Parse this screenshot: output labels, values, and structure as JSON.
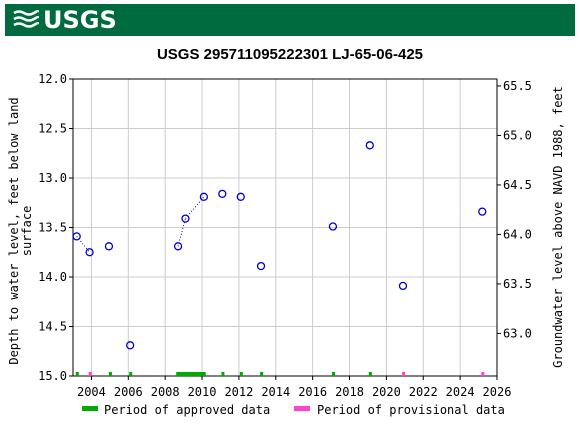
{
  "header": {
    "logo_text": "USGS",
    "banner_color": "#006b3f"
  },
  "chart_data": {
    "type": "scatter",
    "title": "USGS 295711095222301 LJ-65-06-425",
    "ylabel_left": "Depth to water level, feet below land surface",
    "ylabel_left_lines": [
      "Depth to water level, feet below land",
      "surface"
    ],
    "ylabel_right": "Groundwater level above NAVD 1988, feet",
    "xlim": [
      2003.0,
      2026.0
    ],
    "ylim_left": [
      12.0,
      15.0
    ],
    "ylim_right": [
      62.57,
      65.57
    ],
    "x_ticks": [
      "2004",
      "2006",
      "2008",
      "2010",
      "2012",
      "2014",
      "2016",
      "2018",
      "2020",
      "2022",
      "2024",
      "2026"
    ],
    "y_ticks_left": [
      "12.0",
      "12.5",
      "13.0",
      "13.5",
      "14.0",
      "14.5",
      "15.0"
    ],
    "y_ticks_right": [
      "65.5",
      "65.0",
      "64.5",
      "64.0",
      "63.5",
      "63.0"
    ],
    "series": [
      {
        "marker": "open-circle",
        "color": "#0000cc",
        "x": [
          2003.2,
          2003.9,
          2004.95,
          2006.1,
          2008.7,
          2009.1,
          2010.1,
          2011.1,
          2012.1,
          2013.2,
          2017.1,
          2019.1,
          2020.9,
          2025.2
        ],
        "y": [
          13.59,
          13.75,
          13.69,
          14.69,
          13.69,
          13.41,
          13.19,
          13.16,
          13.19,
          13.89,
          13.49,
          12.67,
          14.09,
          13.34
        ],
        "dotted_connections": [
          [
            0,
            1
          ],
          [
            4,
            5
          ],
          [
            5,
            6
          ]
        ]
      }
    ],
    "approved_periods": [
      [
        2003.15,
        2003.3
      ],
      [
        2004.95,
        2005.1
      ],
      [
        2006.05,
        2006.2
      ],
      [
        2008.6,
        2010.2
      ],
      [
        2011.05,
        2011.2
      ],
      [
        2012.05,
        2012.2
      ],
      [
        2013.15,
        2013.3
      ],
      [
        2017.05,
        2017.2
      ],
      [
        2019.05,
        2019.2
      ]
    ],
    "provisional_periods": [
      [
        2003.85,
        2004.0
      ],
      [
        2020.85,
        2021.0
      ],
      [
        2025.15,
        2025.3
      ]
    ],
    "approved_color": "#00aa00",
    "provisional_color": "#ff44cc",
    "legend": {
      "approved_label": "Period of approved data",
      "provisional_label": "Period of provisional data",
      "placement": "bottom"
    },
    "grid": true
  }
}
